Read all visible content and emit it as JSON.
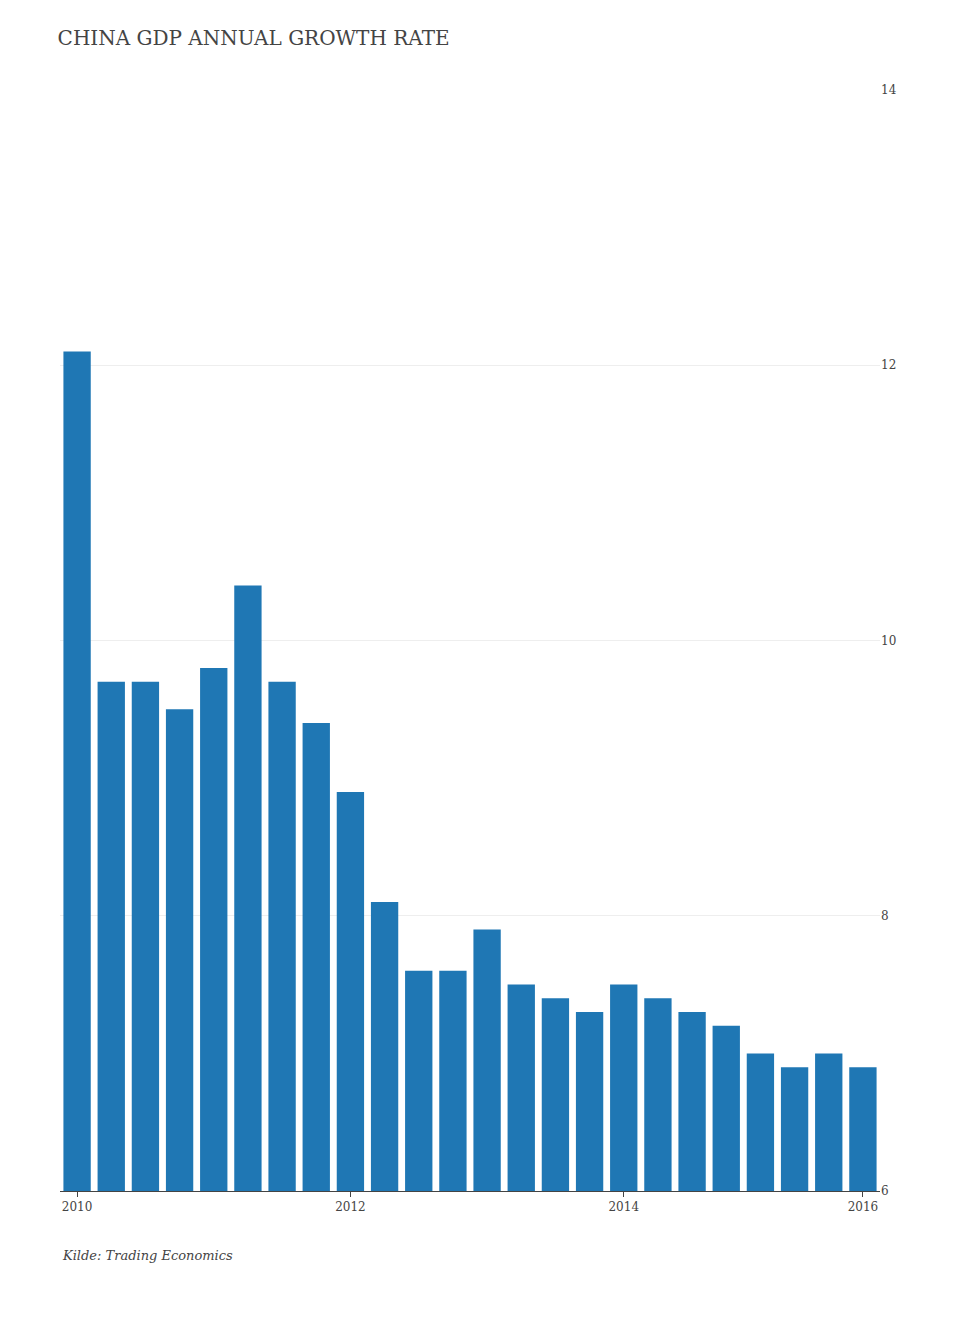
{
  "chart_data": {
    "type": "bar",
    "title": "CHINA GDP ANNUAL GROWTH RATE",
    "categories": [
      "2010",
      null,
      null,
      null,
      null,
      null,
      null,
      null,
      "2012",
      null,
      null,
      null,
      null,
      null,
      null,
      null,
      "2014",
      null,
      null,
      null,
      null,
      null,
      null,
      "2016"
    ],
    "values": [
      12.1,
      9.7,
      9.7,
      9.5,
      9.8,
      10.4,
      9.7,
      9.4,
      8.9,
      8.1,
      7.6,
      7.6,
      7.9,
      7.5,
      7.4,
      7.3,
      7.5,
      7.4,
      7.3,
      7.2,
      7.0,
      6.9,
      7.0,
      6.9
    ],
    "ylim": [
      6,
      14
    ],
    "yticks": [
      6,
      8,
      10,
      12,
      14
    ],
    "grid": true,
    "annotations": [
      "Kilde: Trading Economics"
    ]
  }
}
